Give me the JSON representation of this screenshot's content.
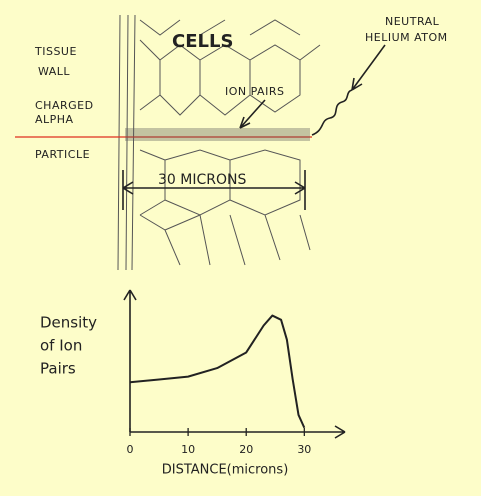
{
  "diagram": {
    "cells_label": "CELLS",
    "tissue_wall_label": [
      "TISSUE",
      "WALL"
    ],
    "alpha_label": [
      "CHARGED",
      "ALPHA",
      "PARTICLE"
    ],
    "ion_pairs_label": "ION PAIRS",
    "helium_label": [
      "NEUTRAL",
      "HELIUM ATOM"
    ],
    "range_label": "30 MICRONS"
  },
  "chart_data": {
    "type": "line",
    "y_label": [
      "Density",
      "of Ion",
      "Pairs"
    ],
    "x_label": "DISTANCE(microns)",
    "x": [
      0,
      5,
      10,
      15,
      20,
      23,
      24.5,
      26,
      27,
      28,
      29,
      30
    ],
    "series": [
      {
        "color": "#222222",
        "values": [
          35,
          37,
          39,
          45,
          56,
          75,
          82,
          79,
          65,
          37,
          12,
          3
        ]
      }
    ],
    "xlim": [
      0,
      37
    ],
    "ylim": [
      0,
      100
    ],
    "xticks": [
      0,
      10,
      20,
      30
    ]
  }
}
